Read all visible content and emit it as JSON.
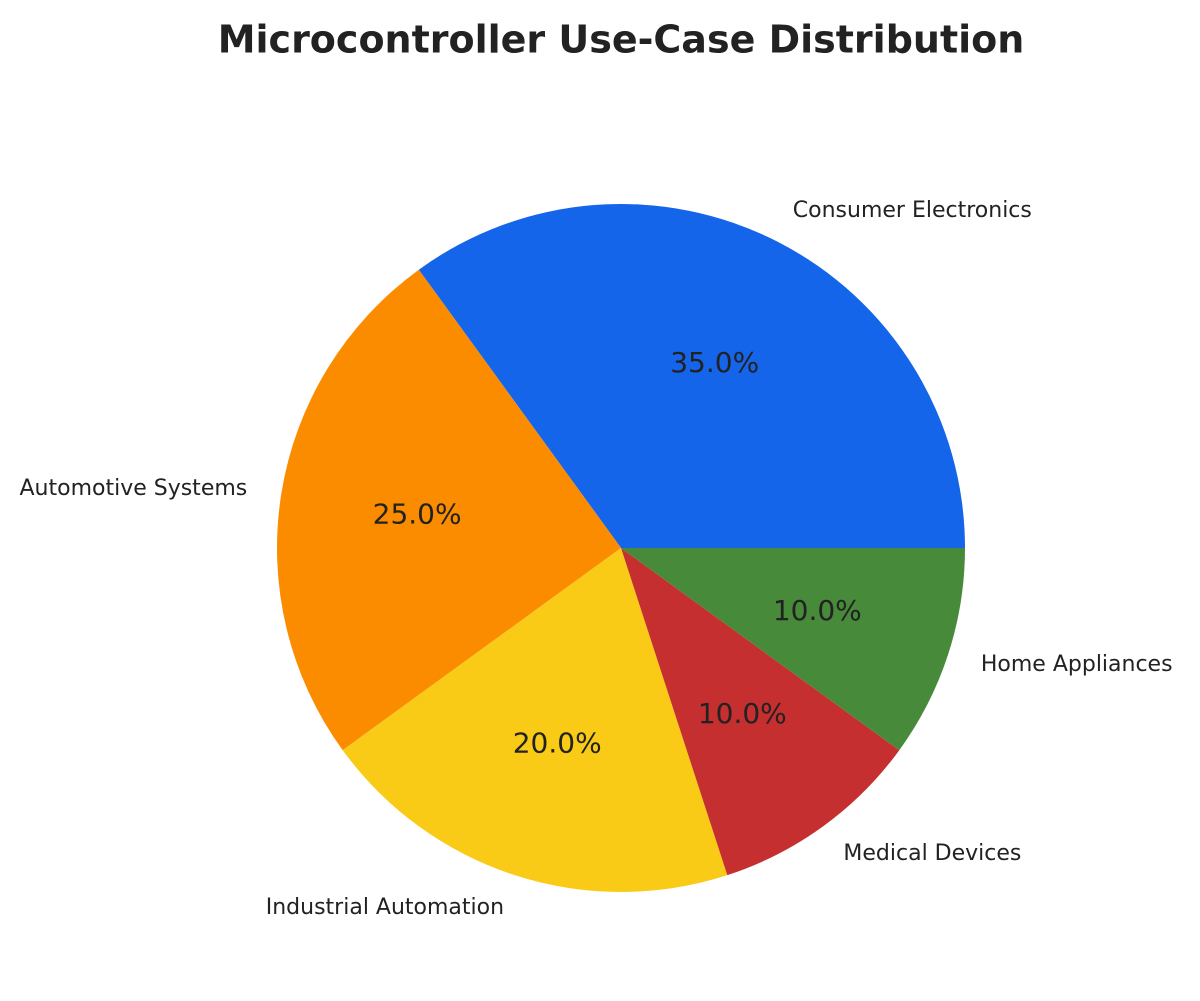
{
  "chart_data": {
    "type": "pie",
    "title": "Microcontroller Use-Case Distribution",
    "categories": [
      "Consumer Electronics",
      "Automotive Systems",
      "Industrial Automation",
      "Medical Devices",
      "Home Appliances"
    ],
    "values": [
      35,
      25,
      20,
      10,
      10
    ],
    "value_labels": [
      "35.0%",
      "25.0%",
      "20.0%",
      "10.0%",
      "10.0%"
    ],
    "colors": [
      "#1565ea",
      "#fb8c00",
      "#f9cb16",
      "#c62f2f",
      "#468a3a"
    ]
  }
}
